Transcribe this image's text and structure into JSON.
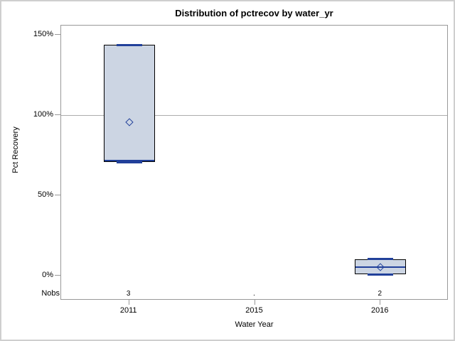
{
  "title": "Distribution of pctrecov by water_yr",
  "colors": {
    "box_fill": "#ccd5e3",
    "box_border": "#000000",
    "line_blue": "#21409a",
    "frame_gray": "#999999",
    "ref_line_gray": "#adadad",
    "outer_border": "#cfcfcf",
    "text": "#000000"
  },
  "chart_data": {
    "type": "box",
    "title": "Distribution of pctrecov by water_yr",
    "xlabel": "Water Year",
    "ylabel": "Pct Recovery",
    "categories": [
      "2011",
      "2015",
      "2016"
    ],
    "nobs_label": "Nobs",
    "nobs": [
      "3",
      ".",
      "2"
    ],
    "y_ticks": [
      {
        "value": 150,
        "label": "150%"
      },
      {
        "value": 100,
        "label": "100%"
      },
      {
        "value": 50,
        "label": "50%"
      },
      {
        "value": 0,
        "label": "0%"
      }
    ],
    "axis_value_range_shown": [
      -15,
      156
    ],
    "reference_line": 100,
    "grid": false,
    "legend": null,
    "boxes": [
      {
        "category": "2011",
        "n": 3,
        "min": 71,
        "q1": 71,
        "median": 72,
        "q3": 144,
        "max": 144,
        "mean": 96
      },
      {
        "category": "2015",
        "n": 0
      },
      {
        "category": "2016",
        "n": 2,
        "min": 1,
        "q1": 1,
        "median": 5.5,
        "q3": 10.5,
        "max": 10.5,
        "mean": 5.5
      }
    ]
  }
}
